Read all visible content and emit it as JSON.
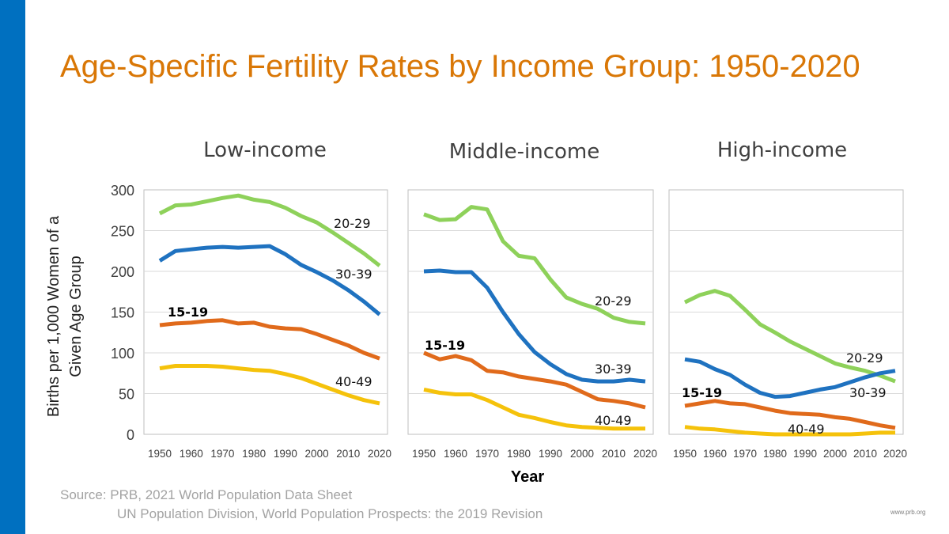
{
  "slide": {
    "title": "Age-Specific Fertility Rates by Income Group: 1950-2020",
    "source_line1": "Source: PRB, 2021 World Population Data Sheet",
    "source_line2": "UN Population Division, World Population Prospects: the 2019 Revision",
    "credit": "www.prb.org"
  },
  "colors": {
    "title": "#d97706",
    "accent_bar": "#0070c0",
    "series_15_19": "#e06a1b",
    "series_20_29": "#8ed15a",
    "series_30_39": "#1f72c0",
    "series_40_49": "#f5c20b",
    "grid": "#d9d9d9"
  },
  "chart_data": [
    {
      "type": "line",
      "title": "Low-income",
      "ylabel": "Births per 1,000 Women of a Given Age Group",
      "xlabel": "",
      "x": [
        1950,
        1955,
        1960,
        1965,
        1970,
        1975,
        1980,
        1985,
        1990,
        1995,
        2000,
        2005,
        2010,
        2015,
        2020
      ],
      "ylim": [
        0,
        300
      ],
      "yticks": [
        0,
        50,
        100,
        150,
        200,
        250,
        300
      ],
      "xticks": [
        1950,
        1960,
        1970,
        1980,
        1990,
        2000,
        2010,
        2020
      ],
      "grid": true,
      "series": [
        {
          "name": "20-29",
          "color": "#8ed15a",
          "values": [
            271,
            281,
            282,
            286,
            290,
            293,
            288,
            285,
            278,
            268,
            260,
            248,
            235,
            222,
            207
          ]
        },
        {
          "name": "30-39",
          "color": "#1f72c0",
          "values": [
            213,
            225,
            227,
            229,
            230,
            229,
            230,
            231,
            221,
            208,
            199,
            189,
            177,
            163,
            147
          ]
        },
        {
          "name": "15-19",
          "color": "#e06a1b",
          "values": [
            134,
            136,
            137,
            139,
            140,
            136,
            137,
            132,
            130,
            129,
            123,
            116,
            109,
            100,
            93
          ]
        },
        {
          "name": "40-49",
          "color": "#f5c20b",
          "values": [
            81,
            84,
            84,
            84,
            83,
            81,
            79,
            78,
            74,
            69,
            62,
            55,
            48,
            42,
            38
          ]
        }
      ],
      "labels": [
        "20-29",
        "30-39",
        "15-19",
        "40-49"
      ]
    },
    {
      "type": "line",
      "title": "Middle-income",
      "xlabel": "Year",
      "x": [
        1950,
        1955,
        1960,
        1965,
        1970,
        1975,
        1980,
        1985,
        1990,
        1995,
        2000,
        2005,
        2010,
        2015,
        2020
      ],
      "ylim": [
        0,
        300
      ],
      "xticks": [
        1950,
        1960,
        1970,
        1980,
        1990,
        2000,
        2010,
        2020
      ],
      "grid": true,
      "series": [
        {
          "name": "20-29",
          "color": "#8ed15a",
          "values": [
            270,
            263,
            264,
            279,
            276,
            237,
            219,
            216,
            190,
            168,
            160,
            154,
            143,
            138,
            136
          ]
        },
        {
          "name": "30-39",
          "color": "#1f72c0",
          "values": [
            200,
            201,
            199,
            199,
            180,
            150,
            123,
            101,
            86,
            74,
            67,
            65,
            65,
            67,
            65
          ]
        },
        {
          "name": "15-19",
          "color": "#e06a1b",
          "values": [
            100,
            92,
            96,
            91,
            78,
            76,
            71,
            68,
            65,
            61,
            52,
            43,
            41,
            38,
            33
          ]
        },
        {
          "name": "40-49",
          "color": "#f5c20b",
          "values": [
            55,
            51,
            49,
            49,
            42,
            33,
            24,
            20,
            15,
            11,
            9,
            8,
            7,
            7,
            7
          ]
        }
      ],
      "labels": [
        "20-29",
        "30-39",
        "15-19",
        "40-49"
      ]
    },
    {
      "type": "line",
      "title": "High-income",
      "xlabel": "",
      "x": [
        1950,
        1955,
        1960,
        1965,
        1970,
        1975,
        1980,
        1985,
        1990,
        1995,
        2000,
        2005,
        2010,
        2015,
        2020
      ],
      "ylim": [
        0,
        300
      ],
      "xticks": [
        1950,
        1960,
        1970,
        1980,
        1990,
        2000,
        2010,
        2020
      ],
      "grid": true,
      "series": [
        {
          "name": "20-29",
          "color": "#8ed15a",
          "values": [
            162,
            171,
            176,
            170,
            153,
            135,
            125,
            114,
            105,
            96,
            87,
            82,
            78,
            72,
            65
          ]
        },
        {
          "name": "30-39",
          "color": "#1f72c0",
          "values": [
            92,
            89,
            80,
            73,
            61,
            51,
            46,
            47,
            51,
            55,
            58,
            64,
            70,
            75,
            78
          ]
        },
        {
          "name": "15-19",
          "color": "#e06a1b",
          "values": [
            35,
            38,
            41,
            38,
            37,
            33,
            29,
            26,
            25,
            24,
            21,
            19,
            15,
            11,
            8
          ]
        },
        {
          "name": "40-49",
          "color": "#f5c20b",
          "values": [
            9,
            7,
            6,
            4,
            2,
            1,
            0,
            0,
            0,
            0,
            0,
            0,
            1,
            2,
            2
          ]
        }
      ],
      "labels": [
        "20-29",
        "30-39",
        "15-19",
        "40-49"
      ]
    }
  ]
}
